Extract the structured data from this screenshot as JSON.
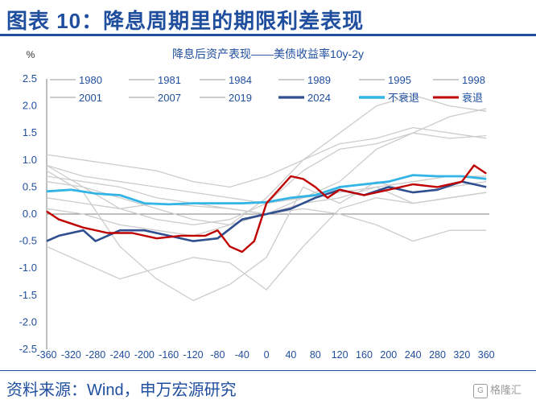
{
  "header": {
    "title": "图表 10：降息周期里的期限利差表现"
  },
  "footer": {
    "source": "资料来源：Wind，申万宏源研究",
    "watermark_text": "格隆汇"
  },
  "chart_data": {
    "type": "line",
    "title": "降息后资产表现——美债收益率10y-2y",
    "y_unit": "%",
    "xlim": [
      -360,
      365
    ],
    "ylim": [
      -2.5,
      2.5
    ],
    "x_ticks": [
      -360,
      -320,
      -280,
      -240,
      -200,
      -160,
      -120,
      -80,
      -40,
      0,
      40,
      80,
      120,
      160,
      200,
      240,
      280,
      320,
      360
    ],
    "y_ticks": [
      2.5,
      2.0,
      1.5,
      1.0,
      0.5,
      0.0,
      -0.5,
      -1.0,
      -1.5,
      -2.0,
      -2.5
    ],
    "y_tick_labels": [
      "2.5",
      "2.0",
      "1.5",
      "1.0",
      "0.5",
      "0.0",
      "-0.5",
      "-1.0",
      "-1.5",
      "-2.0",
      "-2.5"
    ],
    "legend_position": "top",
    "colors": {
      "history": "#cccccc",
      "2024": "#2f4f8f",
      "no_recession": "#33b4e6",
      "recession": "#c00000"
    },
    "series": [
      {
        "name": "1980",
        "x": [
          -360,
          -300,
          -240,
          -180,
          -120,
          -60,
          0,
          60,
          120,
          180,
          240,
          300,
          360
        ],
        "values": [
          0.8,
          0.4,
          -0.6,
          -1.2,
          -1.6,
          -1.3,
          -0.8,
          0.5,
          0.2,
          0.6,
          0.4,
          0.5,
          0.6
        ]
      },
      {
        "name": "1981",
        "x": [
          -360,
          -300,
          -240,
          -180,
          -120,
          -60,
          0,
          60,
          120,
          180,
          240,
          300,
          360
        ],
        "values": [
          -0.6,
          -0.9,
          -1.2,
          -1.0,
          -0.8,
          -0.9,
          -1.4,
          -0.6,
          0.1,
          0.3,
          0.2,
          0.3,
          0.4
        ]
      },
      {
        "name": "1984",
        "x": [
          -360,
          -300,
          -240,
          -180,
          -120,
          -60,
          0,
          60,
          120,
          180,
          240,
          300,
          360
        ],
        "values": [
          1.1,
          1.0,
          0.9,
          0.8,
          0.6,
          0.5,
          0.7,
          1.0,
          1.3,
          1.4,
          1.6,
          1.5,
          1.4
        ]
      },
      {
        "name": "1989",
        "x": [
          -360,
          -300,
          -240,
          -180,
          -120,
          -60,
          0,
          60,
          120,
          180,
          240,
          300,
          360
        ],
        "values": [
          0.6,
          0.5,
          0.3,
          0.1,
          -0.1,
          -0.2,
          0.0,
          0.3,
          0.6,
          1.2,
          1.5,
          1.8,
          1.95
        ]
      },
      {
        "name": "1995",
        "x": [
          -360,
          -300,
          -240,
          -180,
          -120,
          -60,
          0,
          60,
          120,
          180,
          240,
          300,
          360
        ],
        "values": [
          0.9,
          0.7,
          0.6,
          0.5,
          0.4,
          0.3,
          0.2,
          0.3,
          0.4,
          0.5,
          0.2,
          0.3,
          0.4
        ]
      },
      {
        "name": "1998",
        "x": [
          -360,
          -300,
          -240,
          -180,
          -120,
          -60,
          0,
          60,
          120,
          180,
          240,
          300,
          360
        ],
        "values": [
          0.3,
          0.2,
          0.1,
          0.2,
          0.15,
          0.1,
          0.0,
          0.1,
          0.0,
          -0.2,
          -0.5,
          -0.3,
          -0.3
        ]
      },
      {
        "name": "2001",
        "x": [
          -360,
          -300,
          -240,
          -180,
          -120,
          -60,
          0,
          60,
          120,
          180,
          240,
          300,
          360
        ],
        "values": [
          0.1,
          0.0,
          -0.2,
          -0.3,
          -0.4,
          -0.2,
          0.3,
          1.0,
          1.5,
          2.0,
          2.2,
          2.0,
          1.9
        ]
      },
      {
        "name": "2007",
        "x": [
          -360,
          -300,
          -240,
          -180,
          -120,
          -60,
          0,
          60,
          120,
          180,
          240,
          300,
          360
        ],
        "values": [
          0.9,
          0.5,
          0.1,
          -0.1,
          -0.2,
          -0.1,
          0.2,
          0.8,
          1.2,
          1.3,
          1.5,
          1.4,
          1.45
        ]
      },
      {
        "name": "2019",
        "x": [
          -360,
          -300,
          -240,
          -180,
          -120,
          -60,
          0,
          60,
          120,
          180,
          240,
          300,
          360
        ],
        "values": [
          0.7,
          0.6,
          0.5,
          0.3,
          0.2,
          0.1,
          0.0,
          0.2,
          0.3,
          0.5,
          0.6,
          0.7,
          0.7
        ]
      },
      {
        "name": "2024",
        "x": [
          -360,
          -340,
          -300,
          -280,
          -240,
          -200,
          -160,
          -120,
          -80,
          -40,
          0,
          40,
          80,
          120,
          160,
          200,
          240,
          280,
          320,
          340,
          360
        ],
        "values": [
          -0.5,
          -0.4,
          -0.3,
          -0.5,
          -0.3,
          -0.3,
          -0.4,
          -0.5,
          -0.45,
          -0.1,
          0.0,
          0.1,
          0.3,
          0.45,
          0.35,
          0.5,
          0.4,
          0.45,
          0.6,
          0.55,
          0.5
        ]
      },
      {
        "name": "不衰退",
        "x": [
          -360,
          -320,
          -280,
          -240,
          -200,
          -160,
          -120,
          -80,
          -40,
          0,
          40,
          80,
          120,
          160,
          200,
          240,
          280,
          320,
          360
        ],
        "values": [
          0.42,
          0.45,
          0.38,
          0.35,
          0.2,
          0.18,
          0.2,
          0.2,
          0.2,
          0.22,
          0.3,
          0.35,
          0.5,
          0.55,
          0.6,
          0.72,
          0.7,
          0.7,
          0.65
        ]
      },
      {
        "name": "衰退",
        "x": [
          -360,
          -340,
          -300,
          -260,
          -220,
          -180,
          -140,
          -100,
          -80,
          -60,
          -40,
          -20,
          0,
          20,
          40,
          60,
          80,
          100,
          120,
          160,
          200,
          240,
          280,
          320,
          340,
          360
        ],
        "values": [
          0.05,
          -0.1,
          -0.25,
          -0.35,
          -0.35,
          -0.45,
          -0.4,
          -0.4,
          -0.3,
          -0.6,
          -0.7,
          -0.5,
          0.2,
          0.45,
          0.7,
          0.65,
          0.5,
          0.3,
          0.45,
          0.35,
          0.45,
          0.55,
          0.5,
          0.6,
          0.9,
          0.75
        ]
      }
    ]
  }
}
